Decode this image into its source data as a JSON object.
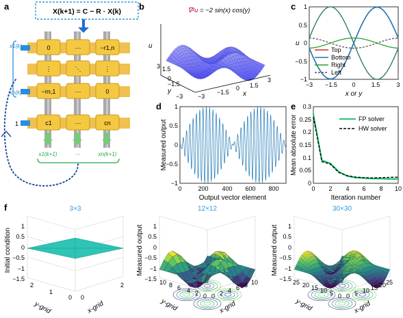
{
  "panels": {
    "a": {
      "label": "a",
      "equation": "X(k+1) = C − R · X(k)",
      "cells": [
        [
          "0",
          "⋯",
          "−r1,n"
        ],
        [
          "⋮",
          "⋱",
          "⋮"
        ],
        [
          "−rn,1",
          "⋯",
          "0"
        ],
        [
          "c1",
          "⋯",
          "cn"
        ]
      ],
      "inputs": [
        "x1(k)",
        "xn(k)",
        "1"
      ],
      "outputs": [
        "x1(k+1)",
        "⋯",
        "xn(k+1)"
      ]
    },
    "b": {
      "label": "b",
      "title_prefix": "∇²u",
      "title_suffix": " = −2 sin(x) cos(y)",
      "zlabel": "u",
      "xlabel": "x",
      "ylabel": "y",
      "xticks": [
        "3",
        "1.5",
        "0",
        "−1.5",
        "−3"
      ],
      "yticks": [
        "−3",
        "−1.5",
        "0",
        "1.5",
        "3"
      ],
      "zticks": []
    },
    "c": {
      "label": "c",
      "xlabel": "x or y",
      "ylabel": "u",
      "legend": [
        "Top",
        "Bottom",
        "Right",
        "Left"
      ],
      "xticks": [
        "−3",
        "−1.5",
        "0",
        "1.5",
        "3"
      ],
      "yticks": [
        "1",
        "0.5",
        "0",
        "−0.5",
        "−1"
      ]
    },
    "d": {
      "label": "d",
      "xlabel": "Output vector element",
      "ylabel": "Measured output",
      "xticks": [
        "0",
        "200",
        "400",
        "600",
        "800"
      ],
      "yticks": [
        "1",
        "0.5",
        "0",
        "−0.5",
        "−1"
      ]
    },
    "e": {
      "label": "e",
      "xlabel": "Iteration number",
      "ylabel": "Mean absolute error",
      "legend": [
        "FP solver",
        "HW solver"
      ],
      "xticks": [
        "0",
        "2",
        "4",
        "6",
        "8",
        "10"
      ],
      "yticks": [
        "0.3",
        "0.25",
        "0.2",
        "0.15",
        "0.1",
        "0.05",
        "0"
      ]
    },
    "f": {
      "label": "f",
      "subplots": [
        {
          "title": "3×3",
          "zlabel": "Initial condition",
          "xlabel": "x-grid",
          "ylabel": "y-grid",
          "zticks": [
            "1",
            "0.5",
            "0",
            "−0.5",
            "−1",
            "−1.5"
          ],
          "xticks": [
            "0",
            "2"
          ],
          "yticks": [
            "2",
            "1",
            "0"
          ]
        },
        {
          "title": "12×12",
          "zlabel": "Measured output",
          "xlabel": "x-grid",
          "ylabel": "y-grid",
          "zticks": [
            "1",
            "0.5",
            "0",
            "−0.5",
            "−1",
            "−1.5"
          ],
          "xticks": [
            "0",
            "2",
            "4",
            "6",
            "8",
            "10"
          ],
          "yticks": [
            "10",
            "8",
            "6",
            "4",
            "2",
            "0"
          ]
        },
        {
          "title": "30×30",
          "zlabel": "Measured output",
          "xlabel": "x-grid",
          "ylabel": "y-grid",
          "zticks": [
            "1",
            "0.5",
            "0",
            "−0.5",
            "−1",
            "−1.5"
          ],
          "xticks": [
            "0",
            "5",
            "10",
            "15",
            "20",
            "25"
          ],
          "yticks": [
            "25",
            "20",
            "15",
            "10",
            "5",
            "0"
          ]
        }
      ]
    }
  },
  "chart_data": [
    {
      "type": "line",
      "panel": "c",
      "xlabel": "x or y",
      "ylabel": "u",
      "xlim": [
        -3,
        3
      ],
      "ylim": [
        -1,
        1
      ],
      "x": [
        -3,
        -2.5,
        -2,
        -1.5,
        -1,
        -0.5,
        0,
        0.5,
        1,
        1.5,
        2,
        2.5,
        3
      ],
      "series": [
        {
          "name": "Top",
          "values": [
            -0.14,
            -0.6,
            -0.91,
            -1.0,
            -0.84,
            -0.48,
            0,
            0.48,
            0.84,
            1.0,
            0.91,
            0.6,
            0.14
          ]
        },
        {
          "name": "Bottom",
          "values": [
            -0.14,
            -0.6,
            -0.91,
            -1.0,
            -0.84,
            -0.48,
            0,
            0.48,
            0.84,
            1.0,
            0.91,
            0.6,
            0.14
          ]
        },
        {
          "name": "Right",
          "values": [
            0.14,
            0.11,
            0.06,
            0.01,
            -0.08,
            -0.12,
            -0.14,
            -0.12,
            -0.08,
            0.01,
            0.06,
            0.11,
            0.14
          ]
        },
        {
          "name": "Left",
          "values": [
            -0.14,
            -0.11,
            -0.06,
            -0.01,
            0.08,
            0.12,
            0.14,
            0.12,
            0.08,
            -0.01,
            -0.06,
            -0.11,
            -0.14
          ]
        }
      ],
      "colors": {
        "Top": "#d62728",
        "Bottom": "#1f77b4",
        "Right": "#2ca02c",
        "Left": "#555555"
      }
    },
    {
      "type": "line",
      "panel": "e",
      "xlabel": "Iteration number",
      "ylabel": "Mean absolute error",
      "xlim": [
        0,
        10
      ],
      "ylim": [
        0,
        0.3
      ],
      "x": [
        0,
        1,
        2,
        3,
        4,
        5,
        6,
        7,
        8,
        9,
        10
      ],
      "series": [
        {
          "name": "FP solver",
          "values": [
            0.27,
            0.09,
            0.078,
            0.045,
            0.028,
            0.022,
            0.02,
            0.018,
            0.018,
            0.017,
            0.017
          ]
        },
        {
          "name": "HW solver",
          "values": [
            0.26,
            0.085,
            0.075,
            0.042,
            0.03,
            0.024,
            0.022,
            0.021,
            0.022,
            0.023,
            0.024
          ]
        }
      ],
      "colors": {
        "FP solver": "#00c060",
        "HW solver": "#000000"
      }
    },
    {
      "type": "line",
      "panel": "d",
      "xlabel": "Output vector element",
      "ylabel": "Measured output",
      "xlim": [
        0,
        900
      ],
      "ylim": [
        -1,
        1
      ],
      "n_points": 900,
      "envelope_periods": 2,
      "color": "#1f77b4"
    }
  ]
}
